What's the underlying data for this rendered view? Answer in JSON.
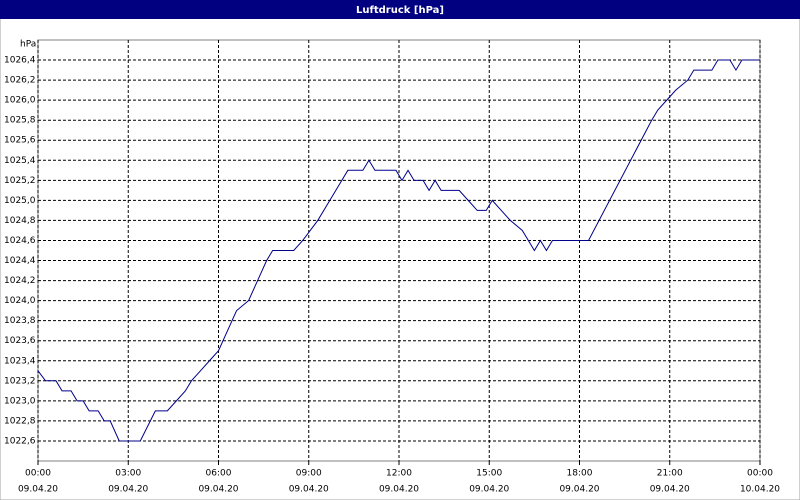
{
  "chart_data": {
    "type": "line",
    "title": "Luftdruck [hPa]",
    "y_label": "hPa",
    "color": "#00008b",
    "grid": true,
    "x": [
      0,
      0.25,
      0.6,
      0.8,
      1.1,
      1.3,
      1.5,
      1.7,
      2.0,
      2.2,
      2.4,
      2.7,
      3.4,
      3.9,
      4.3,
      4.6,
      4.9,
      5.1,
      5.4,
      5.7,
      6.0,
      6.3,
      6.6,
      7.0,
      7.3,
      7.6,
      7.8,
      8.5,
      8.8,
      9.3,
      9.7,
      9.9,
      10.3,
      10.8,
      11.0,
      11.2,
      11.9,
      12.1,
      12.3,
      12.5,
      12.8,
      13.0,
      13.2,
      13.4,
      14.0,
      14.3,
      14.6,
      14.9,
      15.1,
      15.4,
      15.7,
      16.1,
      16.3,
      16.5,
      16.7,
      16.9,
      17.1,
      18.3,
      20.4,
      20.6,
      20.9,
      21.2,
      21.6,
      21.8,
      22.4,
      22.6,
      23.0,
      23.2,
      23.4,
      24.0
    ],
    "values": [
      1023.3,
      1023.2,
      1023.2,
      1023.1,
      1023.1,
      1023.0,
      1023.0,
      1022.9,
      1022.9,
      1022.8,
      1022.8,
      1022.6,
      1022.6,
      1022.9,
      1022.9,
      1023.0,
      1023.1,
      1023.2,
      1023.3,
      1023.4,
      1023.5,
      1023.7,
      1023.9,
      1024.0,
      1024.2,
      1024.4,
      1024.5,
      1024.5,
      1024.6,
      1024.8,
      1025.0,
      1025.1,
      1025.3,
      1025.3,
      1025.4,
      1025.3,
      1025.3,
      1025.2,
      1025.3,
      1025.2,
      1025.2,
      1025.1,
      1025.2,
      1025.1,
      1025.1,
      1025.0,
      1024.9,
      1024.9,
      1025.0,
      1024.9,
      1024.8,
      1024.7,
      1024.6,
      1024.5,
      1024.6,
      1024.5,
      1024.6,
      1024.6,
      1025.8,
      1025.9,
      1026.0,
      1026.1,
      1026.2,
      1026.3,
      1026.3,
      1026.4,
      1026.4,
      1026.3,
      1026.4,
      1026.4
    ],
    "xlim": [
      0,
      24
    ],
    "xticks": [
      {
        "value": 0,
        "label": "00:00",
        "date": "09.04.20"
      },
      {
        "value": 3,
        "label": "03:00",
        "date": "09.04.20"
      },
      {
        "value": 6,
        "label": "06:00",
        "date": "09.04.20"
      },
      {
        "value": 9,
        "label": "09:00",
        "date": "09.04.20"
      },
      {
        "value": 12,
        "label": "12:00",
        "date": "09.04.20"
      },
      {
        "value": 15,
        "label": "15:00",
        "date": "09.04.20"
      },
      {
        "value": 18,
        "label": "18:00",
        "date": "09.04.20"
      },
      {
        "value": 21,
        "label": "21:00",
        "date": "09.04.20"
      },
      {
        "value": 24,
        "label": "00:00",
        "date": "10.04.20"
      }
    ],
    "ylim": [
      1022.4,
      1026.6
    ],
    "yticks": [
      {
        "value": 1022.6,
        "label": "1022,6"
      },
      {
        "value": 1022.8,
        "label": "1022,8"
      },
      {
        "value": 1023.0,
        "label": "1023,0"
      },
      {
        "value": 1023.2,
        "label": "1023,2"
      },
      {
        "value": 1023.4,
        "label": "1023,4"
      },
      {
        "value": 1023.6,
        "label": "1023,6"
      },
      {
        "value": 1023.8,
        "label": "1023,8"
      },
      {
        "value": 1024.0,
        "label": "1024,0"
      },
      {
        "value": 1024.2,
        "label": "1024,2"
      },
      {
        "value": 1024.4,
        "label": "1024,4"
      },
      {
        "value": 1024.6,
        "label": "1024,6"
      },
      {
        "value": 1024.8,
        "label": "1024,8"
      },
      {
        "value": 1025.0,
        "label": "1025,0"
      },
      {
        "value": 1025.2,
        "label": "1025,2"
      },
      {
        "value": 1025.4,
        "label": "1025,4"
      },
      {
        "value": 1025.6,
        "label": "1025,6"
      },
      {
        "value": 1025.8,
        "label": "1025,8"
      },
      {
        "value": 1026.0,
        "label": "1026,0"
      },
      {
        "value": 1026.2,
        "label": "1026,2"
      },
      {
        "value": 1026.4,
        "label": "1026,4"
      }
    ]
  }
}
